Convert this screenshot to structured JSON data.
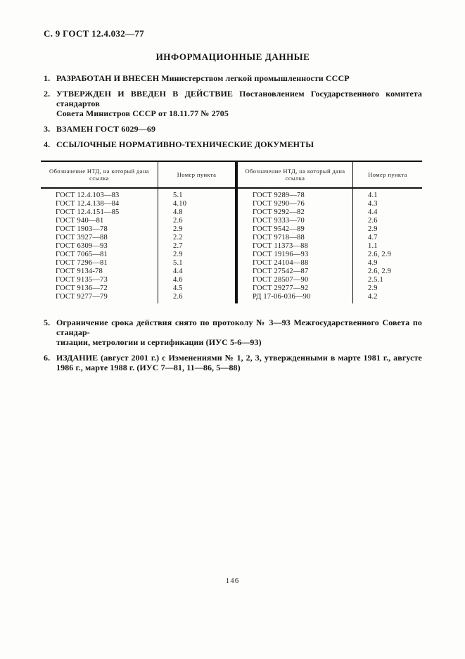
{
  "doc": {
    "header": "С. 9 ГОСТ 12.4.032—77",
    "title": "ИНФОРМАЦИОННЫЕ ДАННЫЕ",
    "page_number": "146"
  },
  "items": [
    {
      "num": "1.",
      "lines": [
        "РАЗРАБОТАН И ВНЕСЕН Министерством легкой промышленности СССР"
      ]
    },
    {
      "num": "2.",
      "lines": [
        "УТВЕРЖДЕН И ВВЕДЕН В ДЕЙСТВИЕ Постановлением Государственного комитета стандартов",
        "Совета Министров СССР от 18.11.77 № 2705"
      ]
    },
    {
      "num": "3.",
      "lines": [
        "ВЗАМЕН ГОСТ 6029—69"
      ]
    },
    {
      "num": "4.",
      "lines": [
        "ССЫЛОЧНЫЕ НОРМАТИВНО-ТЕХНИЧЕСКИЕ ДОКУМЕНТЫ"
      ]
    },
    {
      "num": "5.",
      "lines": [
        "Ограничение срока действия снято по протоколу № 3—93 Межгосударственного Совета по стандар-",
        "тизации, метрологии и сертификации (ИУС 5-6—93)"
      ]
    },
    {
      "num": "6.",
      "lines": [
        "ИЗДАНИЕ (август 2001 г.) с Изменениями № 1, 2, 3, утвержденными в марте 1981 г., августе",
        "1986 г., марте 1988 г. (ИУС 7—81, 11—86, 5—88)"
      ]
    }
  ],
  "table": {
    "col_headers": [
      "Обозначение НТД, на который дана ссылка",
      "Номер пункта",
      "Обозначение НТД, на который дана ссылка",
      "Номер пункта"
    ],
    "rows": [
      [
        "ГОСТ 12.4.103—83",
        "5.1",
        "ГОСТ 9289—78",
        "4.1"
      ],
      [
        "ГОСТ 12.4.138—84",
        "4.10",
        "ГОСТ 9290—76",
        "4.3"
      ],
      [
        "ГОСТ 12.4.151—85",
        "4.8",
        "ГОСТ 9292—82",
        "4.4"
      ],
      [
        "ГОСТ 940—81",
        "2.6",
        "ГОСТ 9333—70",
        "2.6"
      ],
      [
        "ГОСТ 1903—78",
        "2.9",
        "ГОСТ 9542—89",
        "2.9"
      ],
      [
        "ГОСТ 3927—88",
        "2.2",
        "ГОСТ 9718—88",
        "4.7"
      ],
      [
        "ГОСТ 6309—93",
        "2.7",
        "ГОСТ 11373—88",
        "1.1"
      ],
      [
        "ГОСТ 7065—81",
        "2.9",
        "ГОСТ 19196—93",
        "2.6, 2.9"
      ],
      [
        "ГОСТ 7296—81",
        "5.1",
        "ГОСТ 24104—88",
        "4.9"
      ],
      [
        "ГОСТ 9134-78",
        "4.4",
        "ГОСТ 27542—87",
        "2.6, 2.9"
      ],
      [
        "ГОСТ 9135—73",
        "4.6",
        "ГОСТ 28507—90",
        "2.5.1"
      ],
      [
        "ГОСТ 9136—72",
        "4.5",
        "ГОСТ 29277—92",
        "2.9"
      ],
      [
        "ГОСТ 9277—79",
        "2.6",
        "РД 17-06-036—90",
        "4.2"
      ]
    ]
  }
}
